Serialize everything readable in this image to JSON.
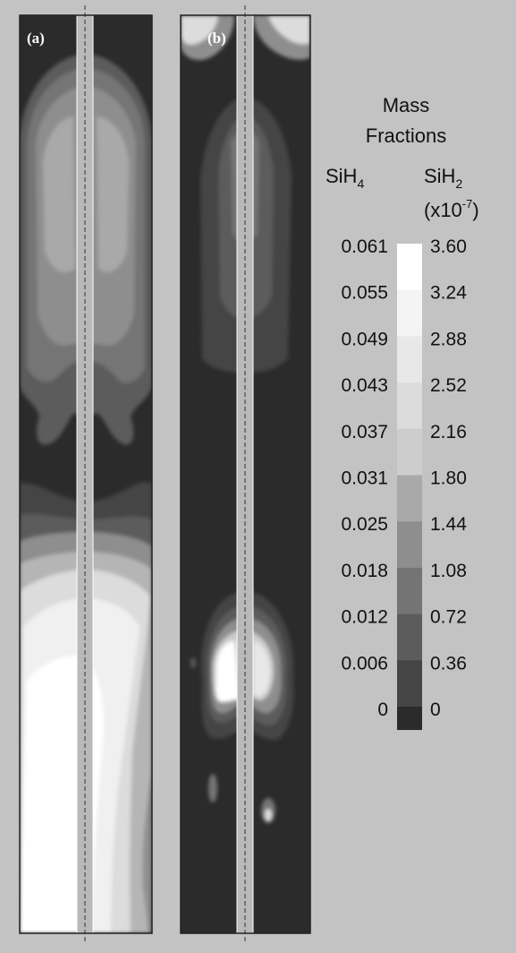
{
  "figure": {
    "panel_a_label": "(a)",
    "panel_b_label": "(b)"
  },
  "legend": {
    "title_line1": "Mass",
    "title_line2": "Fractions",
    "left_header_base": "SiH",
    "left_header_sub": "4",
    "right_header_base": "SiH",
    "right_header_sub": "2",
    "right_unit_prefix": "(x10",
    "right_unit_exp": "-7",
    "right_unit_suffix": ")",
    "sih4_values": [
      "0.061",
      "0.055",
      "0.049",
      "0.043",
      "0.037",
      "0.031",
      "0.025",
      "0.018",
      "0.012",
      "0.006",
      "0"
    ],
    "sih2_values": [
      "3.60",
      "3.24",
      "2.88",
      "2.52",
      "2.16",
      "1.80",
      "1.44",
      "1.08",
      "0.72",
      "0.36",
      "0"
    ],
    "band_colors": [
      "#ffffff",
      "#f4f4f4",
      "#e8e8e8",
      "#dcdcdc",
      "#cdcdcd",
      "#a9a9a9",
      "#8e8e8e",
      "#747474",
      "#5c5c5c",
      "#454545",
      "#2b2b2b"
    ]
  },
  "colors": {
    "background": "#c3c3c3",
    "level0": "#2b2b2b",
    "level1": "#454545",
    "level2": "#5c5c5c",
    "level3": "#747474",
    "level4": "#8e8e8e",
    "level5": "#a9a9a9",
    "level6": "#cdcdcd",
    "level7": "#e8e8e8",
    "level8": "#ffffff",
    "rod": "#b9b9b9"
  }
}
